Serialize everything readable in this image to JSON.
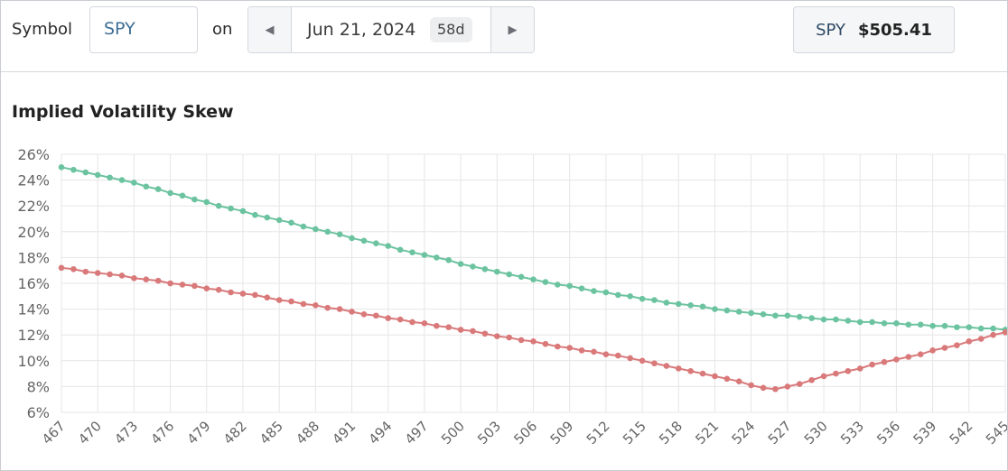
{
  "toolbar": {
    "symbol_label": "Symbol",
    "symbol_value": "SPY",
    "on_label": "on",
    "date": "Jun 21, 2024",
    "dte": "58d",
    "prev_icon": "chevron-left-icon",
    "next_icon": "chevron-right-icon",
    "quote_symbol": "SPY",
    "quote_price": "$505.41"
  },
  "chart_data": {
    "type": "line",
    "title": "Implied Volatility Skew",
    "xlabel": "",
    "ylabel": "",
    "ylim": [
      6,
      26
    ],
    "y_ticks": [
      6,
      8,
      10,
      12,
      14,
      16,
      18,
      20,
      22,
      24,
      26
    ],
    "y_tick_labels": [
      "6%",
      "8%",
      "10%",
      "12%",
      "14%",
      "16%",
      "18%",
      "20%",
      "22%",
      "24%",
      "26%"
    ],
    "x_tick_labels": [
      "467",
      "470",
      "473",
      "476",
      "479",
      "482",
      "485",
      "488",
      "491",
      "494",
      "497",
      "500",
      "503",
      "506",
      "509",
      "512",
      "515",
      "518",
      "521",
      "524",
      "527",
      "530",
      "533",
      "536",
      "539",
      "542",
      "545"
    ],
    "grid": true,
    "colors": {
      "upper": "#6cc3a0",
      "lower": "#d9797a",
      "grid": "#e6e6e6"
    },
    "x": [
      467,
      468,
      469,
      470,
      471,
      472,
      473,
      474,
      475,
      476,
      477,
      478,
      479,
      480,
      481,
      482,
      483,
      484,
      485,
      486,
      487,
      488,
      489,
      490,
      491,
      492,
      493,
      494,
      495,
      496,
      497,
      498,
      499,
      500,
      501,
      502,
      503,
      504,
      505,
      506,
      507,
      508,
      509,
      510,
      511,
      512,
      513,
      514,
      515,
      516,
      517,
      518,
      519,
      520,
      521,
      522,
      523,
      524,
      525,
      526,
      527,
      528,
      529,
      530,
      531,
      532,
      533,
      534,
      535,
      536,
      537,
      538,
      539,
      540,
      541,
      542,
      543,
      544,
      545
    ],
    "series": [
      {
        "values": [
          25.0,
          24.8,
          24.6,
          24.4,
          24.2,
          24.0,
          23.8,
          23.5,
          23.3,
          23.0,
          22.8,
          22.5,
          22.3,
          22.0,
          21.8,
          21.6,
          21.3,
          21.1,
          20.9,
          20.7,
          20.4,
          20.2,
          20.0,
          19.8,
          19.5,
          19.3,
          19.1,
          18.9,
          18.6,
          18.4,
          18.2,
          18.0,
          17.8,
          17.5,
          17.3,
          17.1,
          16.9,
          16.7,
          16.5,
          16.3,
          16.1,
          15.9,
          15.8,
          15.6,
          15.4,
          15.3,
          15.1,
          15.0,
          14.8,
          14.7,
          14.5,
          14.4,
          14.3,
          14.2,
          14.0,
          13.9,
          13.8,
          13.7,
          13.6,
          13.5,
          13.5,
          13.4,
          13.3,
          13.2,
          13.2,
          13.1,
          13.0,
          13.0,
          12.9,
          12.9,
          12.8,
          12.8,
          12.7,
          12.7,
          12.6,
          12.6,
          12.5,
          12.5,
          12.4
        ]
      },
      {
        "values": [
          17.2,
          17.1,
          16.9,
          16.8,
          16.7,
          16.6,
          16.4,
          16.3,
          16.2,
          16.0,
          15.9,
          15.8,
          15.6,
          15.5,
          15.3,
          15.2,
          15.1,
          14.9,
          14.7,
          14.6,
          14.4,
          14.3,
          14.1,
          14.0,
          13.8,
          13.6,
          13.5,
          13.3,
          13.2,
          13.0,
          12.9,
          12.7,
          12.6,
          12.4,
          12.3,
          12.1,
          11.9,
          11.8,
          11.6,
          11.5,
          11.3,
          11.1,
          11.0,
          10.8,
          10.7,
          10.5,
          10.4,
          10.2,
          10.0,
          9.8,
          9.6,
          9.4,
          9.2,
          9.0,
          8.8,
          8.6,
          8.4,
          8.1,
          7.9,
          7.8,
          8.0,
          8.2,
          8.5,
          8.8,
          9.0,
          9.2,
          9.4,
          9.7,
          9.9,
          10.1,
          10.3,
          10.5,
          10.8,
          11.0,
          11.2,
          11.5,
          11.7,
          12.0,
          12.2
        ]
      }
    ]
  }
}
